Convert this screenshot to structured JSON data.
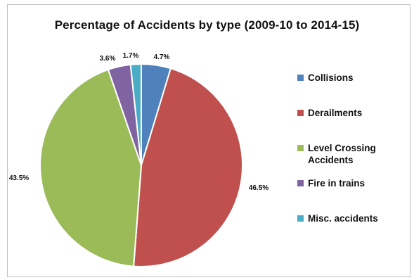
{
  "chart_data": {
    "type": "pie",
    "title": "Percentage of Accidents by type (2009-10 to 2014-15)",
    "slices": [
      {
        "label": "Collisions",
        "value": 4.7,
        "display": "4.7%",
        "color": "#4f81bd"
      },
      {
        "label": "Derailments",
        "value": 46.5,
        "display": "46.5%",
        "color": "#c0504d"
      },
      {
        "label": "Level Crossing Accidents",
        "value": 43.5,
        "display": "43.5%",
        "color": "#9bbb59"
      },
      {
        "label": "Fire in trains",
        "value": 3.6,
        "display": "3.6%",
        "color": "#8064a2"
      },
      {
        "label": "Misc. accidents",
        "value": 1.7,
        "display": "1.7%",
        "color": "#4bacc6"
      }
    ],
    "legend_position": "right"
  }
}
